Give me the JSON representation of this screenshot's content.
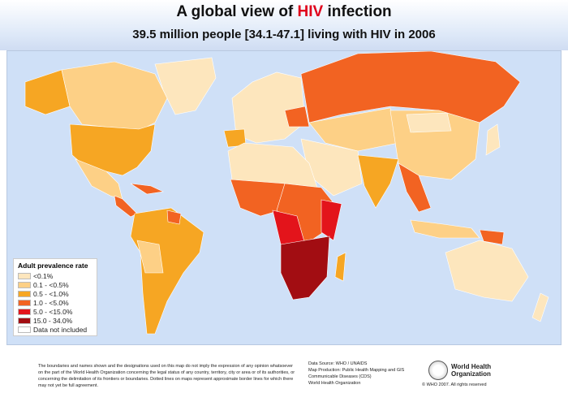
{
  "header": {
    "title_pre": "A global view of ",
    "title_highlight": "HIV",
    "title_post": " infection",
    "subtitle": "39.5 million people [34.1-47.1] living with HIV in 2006"
  },
  "legend": {
    "title": "Adult prevalence rate",
    "items": [
      {
        "label": "<0.1%",
        "color": "#fde6bd"
      },
      {
        "label": "0.1 - <0.5%",
        "color": "#fdd086"
      },
      {
        "label": "0.5 - <1.0%",
        "color": "#f6a623"
      },
      {
        "label": "1.0 - <5.0%",
        "color": "#f26322"
      },
      {
        "label": "5.0 - <15.0%",
        "color": "#e3141b"
      },
      {
        "label": "15.0 - 34.0%",
        "color": "#a20d12"
      },
      {
        "label": "Data not included",
        "color": "#ffffff"
      }
    ]
  },
  "footer": {
    "disclaimer": "The boundaries and names shown and the designations used on this map do not imply the expression of any opinion whatsoever on the part of the World Health Organization concerning the legal status of any country, territory, city or area or of its authorities, or concerning the delimitation of its frontiers or boundaries. Dotted lines on maps represent approximate border lines for which there may not yet be full agreement.",
    "source_lines": [
      "Data Source: WHO / UNAIDS",
      "Map Production: Public Health Mapping and GIS",
      "Communicable Diseases (CDS)",
      "World Health Organization"
    ],
    "logo_text_1": "World Health",
    "logo_text_2": "Organization",
    "copyright": "© WHO 2007. All rights reserved"
  }
}
